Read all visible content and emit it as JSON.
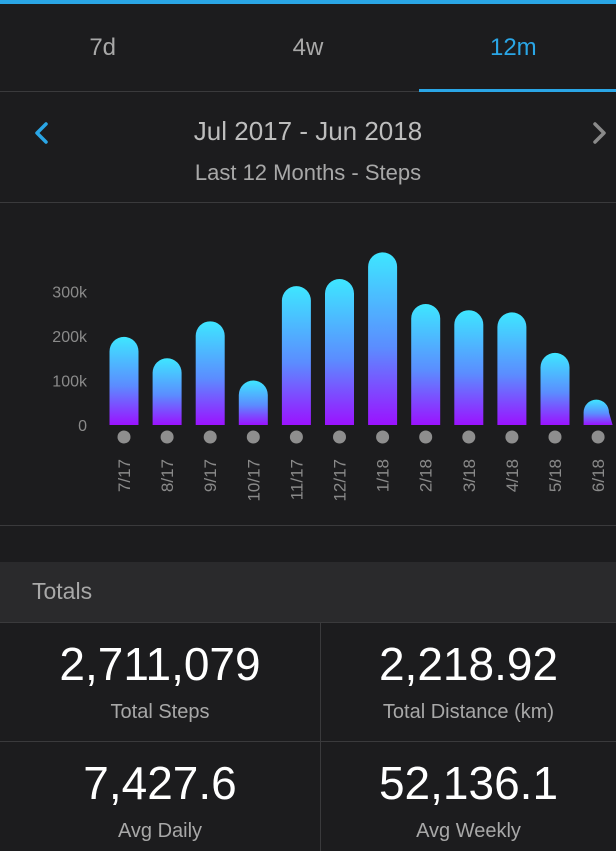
{
  "tabs": [
    {
      "label": "7d",
      "active": false
    },
    {
      "label": "4w",
      "active": false
    },
    {
      "label": "12m",
      "active": true
    }
  ],
  "range": {
    "title": "Jul 2017 - Jun 2018",
    "subtitle": "Last 12 Months - Steps"
  },
  "colors": {
    "accent": "#2aa6e6",
    "bar_top": "#3ee6ff",
    "bar_bottom": "#9b12ff",
    "background": "#1c1c1e"
  },
  "chart_data": {
    "type": "bar",
    "categories": [
      "7/17",
      "8/17",
      "9/17",
      "10/17",
      "11/17",
      "12/17",
      "1/18",
      "2/18",
      "3/18",
      "4/18",
      "5/18",
      "6/18"
    ],
    "values": [
      198000,
      150000,
      233000,
      100000,
      312000,
      328000,
      388000,
      272000,
      258000,
      253000,
      162000,
      57000
    ],
    "yticks": [
      0,
      100000,
      200000,
      300000
    ],
    "ytick_labels": [
      "0",
      "100k",
      "200k",
      "300k"
    ],
    "ylim": [
      0,
      400000
    ],
    "grid": false
  },
  "totals": {
    "header": "Totals",
    "items": [
      {
        "value": "2,711,079",
        "label": "Total Steps"
      },
      {
        "value": "2,218.92",
        "label": "Total Distance (km)"
      },
      {
        "value": "7,427.6",
        "label": "Avg Daily"
      },
      {
        "value": "52,136.1",
        "label": "Avg Weekly"
      }
    ]
  }
}
